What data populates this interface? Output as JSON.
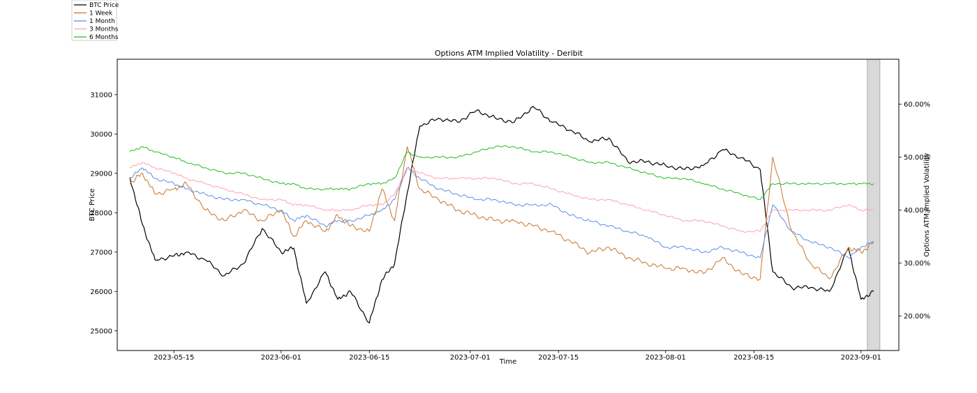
{
  "chart_data": {
    "type": "line",
    "title": "Options ATM Implied Volatility - Deribit",
    "xlabel": "Time",
    "ylabel_left": "BTC Price",
    "ylabel_right": "Options ATM Implied Volatility",
    "x_range": [
      "2023-05-06",
      "2023-09-07"
    ],
    "ylim_left": [
      24500,
      31900
    ],
    "ylim_right": [
      13.5,
      68.5
    ],
    "x_ticks": [
      "2023-05-15",
      "2023-06-01",
      "2023-06-15",
      "2023-07-01",
      "2023-07-15",
      "2023-08-01",
      "2023-08-15",
      "2023-09-01"
    ],
    "y_ticks_left": [
      "25000",
      "26000",
      "27000",
      "28000",
      "29000",
      "30000",
      "31000"
    ],
    "y_ticks_right": [
      "20.00%",
      "30.00%",
      "40.00%",
      "50.00%",
      "60.00%"
    ],
    "shaded_region": [
      "2023-09-02",
      "2023-09-04"
    ],
    "legend_position": "top-left",
    "dates": [
      "2023-05-08",
      "2023-05-10",
      "2023-05-12",
      "2023-05-15",
      "2023-05-17",
      "2023-05-20",
      "2023-05-23",
      "2023-05-26",
      "2023-05-29",
      "2023-06-01",
      "2023-06-03",
      "2023-06-05",
      "2023-06-08",
      "2023-06-10",
      "2023-06-12",
      "2023-06-15",
      "2023-06-17",
      "2023-06-19",
      "2023-06-21",
      "2023-06-23",
      "2023-06-26",
      "2023-06-29",
      "2023-07-02",
      "2023-07-05",
      "2023-07-08",
      "2023-07-11",
      "2023-07-14",
      "2023-07-17",
      "2023-07-20",
      "2023-07-23",
      "2023-07-26",
      "2023-07-29",
      "2023-08-01",
      "2023-08-04",
      "2023-08-07",
      "2023-08-10",
      "2023-08-13",
      "2023-08-16",
      "2023-08-18",
      "2023-08-21",
      "2023-08-24",
      "2023-08-27",
      "2023-08-30",
      "2023-09-01",
      "2023-09-03"
    ],
    "series": [
      {
        "name": "BTC Price",
        "axis": "left",
        "color": "#000000",
        "values": [
          28900,
          27700,
          26800,
          26900,
          27000,
          26800,
          26400,
          26700,
          27600,
          27000,
          27100,
          25700,
          26500,
          25800,
          26000,
          25200,
          26300,
          26700,
          28500,
          30200,
          30400,
          30300,
          30600,
          30400,
          30300,
          30700,
          30300,
          30100,
          29800,
          29900,
          29300,
          29300,
          29200,
          29100,
          29200,
          29600,
          29400,
          29100,
          26500,
          26100,
          26100,
          26000,
          27100,
          25800,
          26000
        ]
      },
      {
        "name": "1 Week",
        "axis": "right",
        "color": "#c8732a",
        "values": [
          45,
          47,
          43,
          44,
          45,
          40,
          38,
          40,
          38,
          40,
          35,
          38,
          36,
          39,
          37,
          36,
          44,
          38,
          52,
          44,
          42,
          40,
          39,
          38,
          38,
          37,
          36,
          34,
          32,
          33,
          31,
          30,
          29,
          29,
          28,
          31,
          28,
          27,
          50,
          36,
          30,
          27,
          33,
          32,
          34
        ]
      },
      {
        "name": "1 Month",
        "axis": "right",
        "color": "#5b8ee6",
        "values": [
          46,
          48,
          46,
          45,
          44,
          43,
          42,
          42,
          41,
          40,
          38,
          39,
          37,
          38,
          38,
          39,
          40,
          42,
          48,
          46,
          44,
          43,
          42,
          42,
          41,
          41,
          41,
          39,
          38,
          37,
          36,
          35,
          33,
          33,
          32,
          33,
          32,
          31,
          41,
          36,
          34,
          33,
          31,
          33,
          34
        ]
      },
      {
        "name": "3 Months",
        "axis": "right",
        "color": "#ffa0b0",
        "values": [
          48,
          49,
          48,
          47,
          46,
          45,
          44,
          43,
          42,
          42,
          41,
          41,
          40,
          40,
          40,
          41,
          41,
          43,
          48,
          47,
          46,
          46,
          46,
          46,
          45,
          45,
          44,
          43,
          42,
          42,
          41,
          40,
          39,
          38,
          38,
          37,
          36,
          36,
          40,
          40,
          40,
          40,
          41,
          40,
          40
        ]
      },
      {
        "name": "6 Months",
        "axis": "right",
        "color": "#22bb22",
        "values": [
          51,
          52,
          51,
          50,
          49,
          48,
          47,
          47,
          46,
          45,
          45,
          44,
          44,
          44,
          44,
          45,
          45,
          46,
          51,
          50,
          50,
          50,
          51,
          52,
          52,
          51,
          51,
          50,
          49,
          49,
          48,
          47,
          46,
          46,
          45,
          44,
          43,
          42,
          45,
          45,
          45,
          45,
          45,
          45,
          45
        ]
      }
    ]
  }
}
